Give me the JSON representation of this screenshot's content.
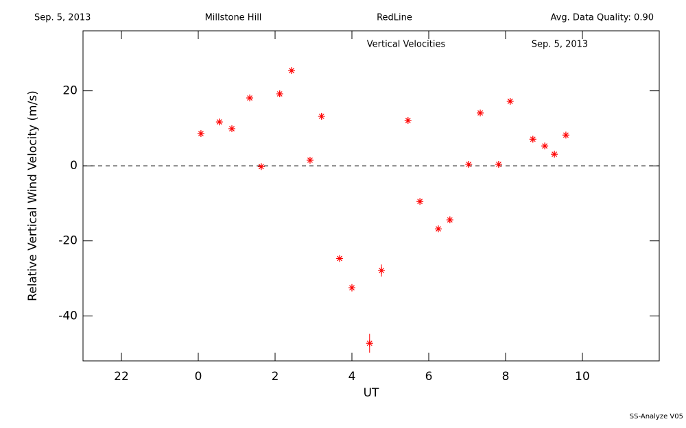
{
  "header": {
    "date": "Sep. 5, 2013",
    "site": "Millstone Hill",
    "filter": "RedLine",
    "quality": "Avg. Data Quality: 0.90"
  },
  "footer": "SS-Analyze V05",
  "chart_data": {
    "type": "scatter",
    "title": "Vertical Velocities",
    "subtitle": "Sep. 5, 2013",
    "x_label": "UT",
    "y_label": "Relative Vertical Wind Velocity (m/s)",
    "x": [
      0.07,
      0.55,
      0.875,
      1.34,
      1.64,
      2.12,
      2.43,
      2.91,
      3.21,
      3.68,
      4.0,
      4.46,
      4.77,
      5.46,
      5.77,
      6.25,
      6.55,
      7.04,
      7.34,
      7.82,
      8.12,
      8.71,
      9.02,
      9.27,
      9.57
    ],
    "values": [
      8.6,
      11.7,
      9.9,
      18.1,
      -0.2,
      19.2,
      25.4,
      1.5,
      13.2,
      -24.7,
      -32.5,
      -47.3,
      -27.9,
      12.1,
      -9.5,
      -16.8,
      -14.4,
      0.4,
      14.1,
      0.4,
      17.2,
      7.1,
      5.3,
      3.1,
      8.2
    ],
    "errors": [
      0.8,
      0.8,
      0.8,
      0.8,
      0.8,
      0.8,
      0.8,
      0.8,
      0.8,
      0.8,
      1,
      2.5,
      1.6,
      0.8,
      0.8,
      0.8,
      0.8,
      0.8,
      0.8,
      0.8,
      0.8,
      0.8,
      0.8,
      0.8,
      0.8
    ],
    "color": "#ff0000",
    "xlim": [
      -3,
      12
    ],
    "xticks": [
      {
        "value": -2,
        "label": "22"
      },
      0,
      2,
      4,
      6,
      8,
      10
    ],
    "ylim": [
      -52,
      36
    ],
    "yticks": [
      -40,
      -20,
      0,
      20
    ],
    "reference_line": 0
  }
}
